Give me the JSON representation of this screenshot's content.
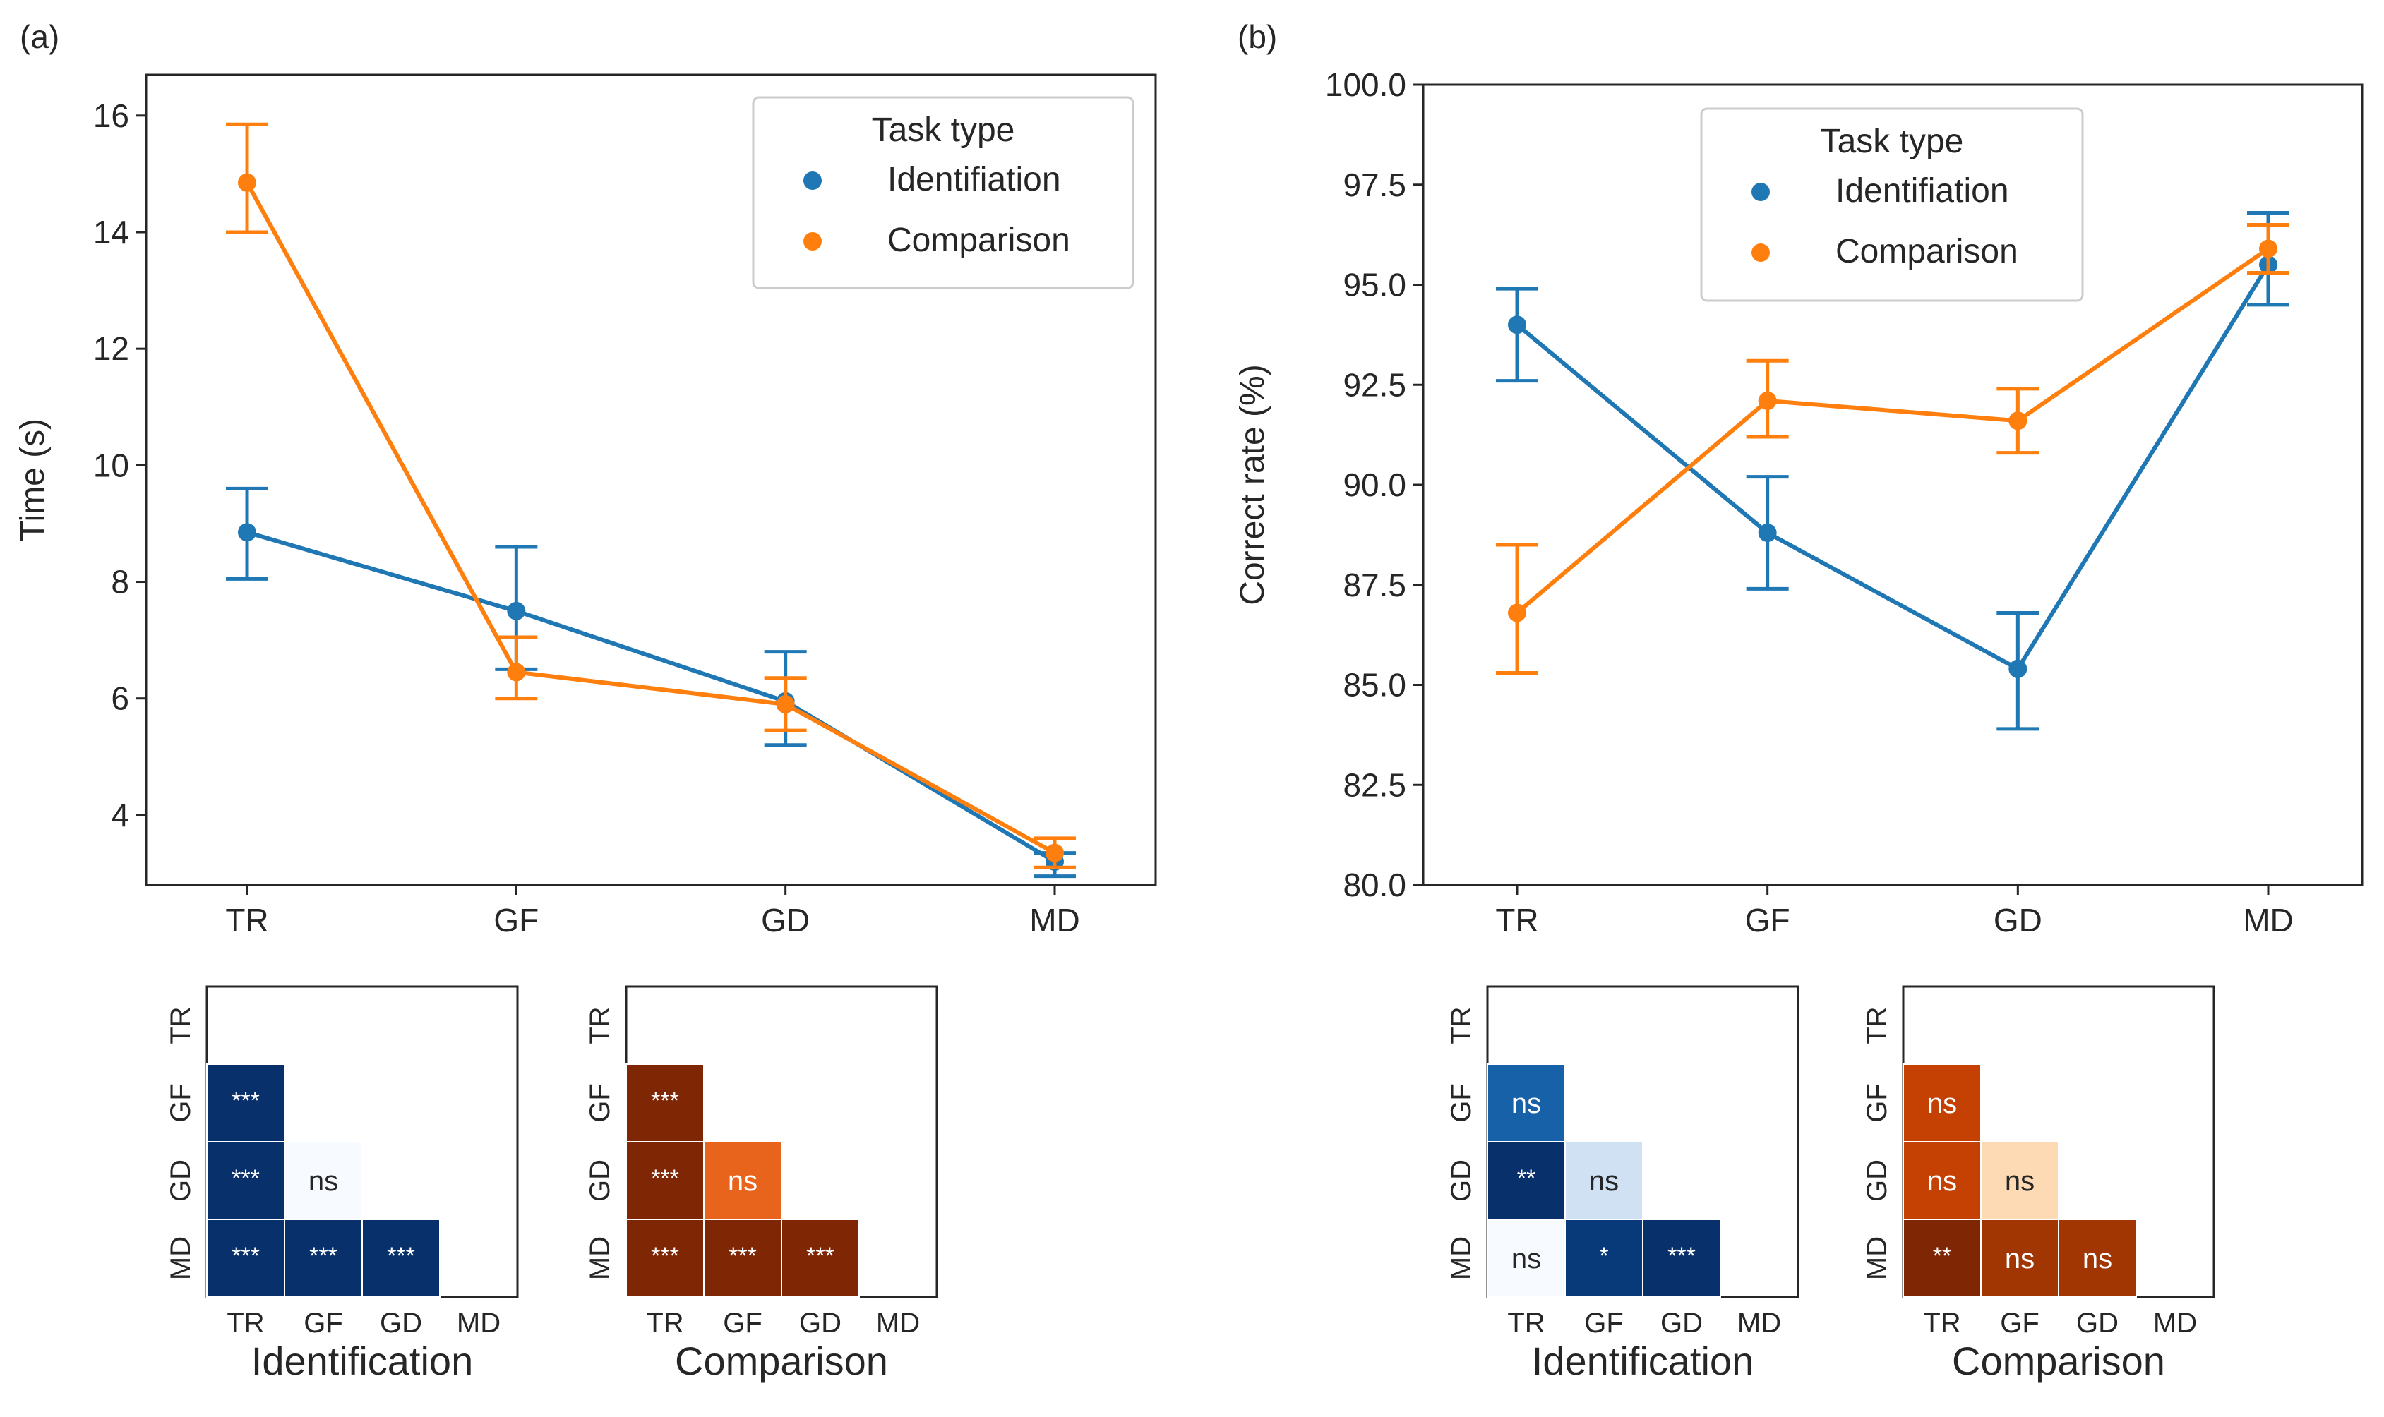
{
  "figure": {
    "panel_labels": [
      "(a)",
      "(b)"
    ]
  },
  "categories": [
    "TR",
    "GF",
    "GD",
    "MD"
  ],
  "legend": {
    "title": "Task type",
    "entries": [
      "Identifiation",
      "Comparison"
    ]
  },
  "colors": {
    "identification": "#1f77b4",
    "comparison": "#ff7f0e",
    "axes": "#262626",
    "text": "#262626",
    "cell_border": "#ffffff"
  },
  "chart_data": [
    {
      "id": "time",
      "type": "line",
      "panel": "(a)",
      "ylabel": "Time (s)",
      "ylim": [
        2.8,
        16.7
      ],
      "yticks": [
        "4",
        "6",
        "8",
        "10",
        "12",
        "14",
        "16"
      ],
      "categories": [
        "TR",
        "GF",
        "GD",
        "MD"
      ],
      "legend_position": "top-right",
      "series": [
        {
          "name": "Identifiation",
          "color": "#1f77b4",
          "values": [
            8.85,
            7.5,
            5.95,
            3.2
          ],
          "err_low": [
            8.05,
            6.5,
            5.2,
            2.95
          ],
          "err_high": [
            9.6,
            8.6,
            6.8,
            3.35
          ]
        },
        {
          "name": "Comparison",
          "color": "#ff7f0e",
          "values": [
            14.85,
            6.45,
            5.9,
            3.35
          ],
          "err_low": [
            14.0,
            6.0,
            5.45,
            3.1
          ],
          "err_high": [
            15.85,
            7.05,
            6.35,
            3.6
          ]
        }
      ]
    },
    {
      "id": "accuracy",
      "type": "line",
      "panel": "(b)",
      "ylabel": "Correct rate (%)",
      "ylim": [
        80.0,
        100.0
      ],
      "yticks": [
        "80.0",
        "82.5",
        "85.0",
        "87.5",
        "90.0",
        "92.5",
        "95.0",
        "97.5",
        "100.0"
      ],
      "categories": [
        "TR",
        "GF",
        "GD",
        "MD"
      ],
      "legend_position": "top-center",
      "series": [
        {
          "name": "Identifiation",
          "color": "#1f77b4",
          "values": [
            94.0,
            88.8,
            85.4,
            95.5
          ],
          "err_low": [
            92.6,
            87.4,
            83.9,
            94.5
          ],
          "err_high": [
            94.9,
            90.2,
            86.8,
            96.8
          ]
        },
        {
          "name": "Comparison",
          "color": "#ff7f0e",
          "values": [
            86.8,
            92.1,
            91.6,
            95.9
          ],
          "err_low": [
            85.3,
            91.2,
            90.8,
            95.3
          ],
          "err_high": [
            88.5,
            93.1,
            92.4,
            96.5
          ]
        }
      ]
    },
    {
      "id": "time_ident_pairwise",
      "type": "heatmap",
      "xlabel": "Identification",
      "rows": [
        "TR",
        "GF",
        "GD",
        "MD"
      ],
      "cols": [
        "TR",
        "GF",
        "GD",
        "MD"
      ],
      "cells": [
        {
          "row": "GF",
          "col": "TR",
          "label": "***",
          "color": "#08306b",
          "label_color": "#ffffff"
        },
        {
          "row": "GD",
          "col": "TR",
          "label": "***",
          "color": "#08306b",
          "label_color": "#ffffff"
        },
        {
          "row": "GD",
          "col": "GF",
          "label": "ns",
          "color": "#f7fbff",
          "label_color": "#262626"
        },
        {
          "row": "MD",
          "col": "TR",
          "label": "***",
          "color": "#08306b",
          "label_color": "#ffffff"
        },
        {
          "row": "MD",
          "col": "GF",
          "label": "***",
          "color": "#08306b",
          "label_color": "#ffffff"
        },
        {
          "row": "MD",
          "col": "GD",
          "label": "***",
          "color": "#08306b",
          "label_color": "#ffffff"
        }
      ]
    },
    {
      "id": "time_comp_pairwise",
      "type": "heatmap",
      "xlabel": "Comparison",
      "rows": [
        "TR",
        "GF",
        "GD",
        "MD"
      ],
      "cols": [
        "TR",
        "GF",
        "GD",
        "MD"
      ],
      "cells": [
        {
          "row": "GF",
          "col": "TR",
          "label": "***",
          "color": "#7f2704",
          "label_color": "#ffffff"
        },
        {
          "row": "GD",
          "col": "TR",
          "label": "***",
          "color": "#7f2704",
          "label_color": "#ffffff"
        },
        {
          "row": "GD",
          "col": "GF",
          "label": "ns",
          "color": "#e8631c",
          "label_color": "#ffffff"
        },
        {
          "row": "MD",
          "col": "TR",
          "label": "***",
          "color": "#7f2704",
          "label_color": "#ffffff"
        },
        {
          "row": "MD",
          "col": "GF",
          "label": "***",
          "color": "#7f2704",
          "label_color": "#ffffff"
        },
        {
          "row": "MD",
          "col": "GD",
          "label": "***",
          "color": "#7f2704",
          "label_color": "#ffffff"
        }
      ]
    },
    {
      "id": "acc_ident_pairwise",
      "type": "heatmap",
      "xlabel": "Identification",
      "rows": [
        "TR",
        "GF",
        "GD",
        "MD"
      ],
      "cols": [
        "TR",
        "GF",
        "GD",
        "MD"
      ],
      "cells": [
        {
          "row": "GF",
          "col": "TR",
          "label": "ns",
          "color": "#1761a8",
          "label_color": "#ffffff"
        },
        {
          "row": "GD",
          "col": "TR",
          "label": "**",
          "color": "#08306b",
          "label_color": "#ffffff"
        },
        {
          "row": "GD",
          "col": "GF",
          "label": "ns",
          "color": "#cfe1f2",
          "label_color": "#262626"
        },
        {
          "row": "MD",
          "col": "TR",
          "label": "ns",
          "color": "#f7fbff",
          "label_color": "#262626"
        },
        {
          "row": "MD",
          "col": "GF",
          "label": "*",
          "color": "#083a7a",
          "label_color": "#ffffff"
        },
        {
          "row": "MD",
          "col": "GD",
          "label": "***",
          "color": "#08306b",
          "label_color": "#ffffff"
        }
      ]
    },
    {
      "id": "acc_comp_pairwise",
      "type": "heatmap",
      "xlabel": "Comparison",
      "rows": [
        "TR",
        "GF",
        "GD",
        "MD"
      ],
      "cols": [
        "TR",
        "GF",
        "GD",
        "MD"
      ],
      "cells": [
        {
          "row": "GF",
          "col": "TR",
          "label": "ns",
          "color": "#c44103",
          "label_color": "#ffffff"
        },
        {
          "row": "GD",
          "col": "TR",
          "label": "ns",
          "color": "#c44103",
          "label_color": "#ffffff"
        },
        {
          "row": "GD",
          "col": "GF",
          "label": "ns",
          "color": "#fdd9b4",
          "label_color": "#262626"
        },
        {
          "row": "MD",
          "col": "TR",
          "label": "**",
          "color": "#7f2704",
          "label_color": "#ffffff"
        },
        {
          "row": "MD",
          "col": "GF",
          "label": "ns",
          "color": "#a23603",
          "label_color": "#ffffff"
        },
        {
          "row": "MD",
          "col": "GD",
          "label": "ns",
          "color": "#a23603",
          "label_color": "#ffffff"
        }
      ]
    }
  ]
}
